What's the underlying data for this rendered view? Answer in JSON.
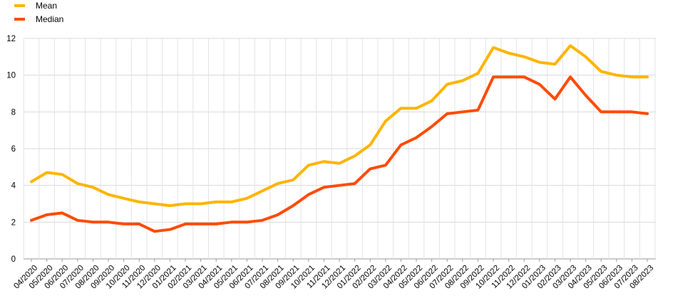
{
  "chart_data": {
    "type": "line",
    "title": "",
    "xlabel": "",
    "ylabel": "",
    "ylim": [
      0,
      12
    ],
    "yticks": [
      0,
      2,
      4,
      6,
      8,
      10,
      12
    ],
    "grid": true,
    "legend_position": "top-left",
    "categories": [
      "04/2020",
      "05/2020",
      "06/2020",
      "07/2020",
      "08/2020",
      "09/2020",
      "10/2020",
      "11/2020",
      "12/2020",
      "01/2021",
      "02/2021",
      "03/2021",
      "04/2021",
      "05/2021",
      "06/2021",
      "07/2021",
      "08/2021",
      "09/2021",
      "10/2021",
      "11/2021",
      "12/2021",
      "01/2022",
      "02/2022",
      "03/2022",
      "04/2022",
      "05/2022",
      "06/2022",
      "07/2022",
      "08/2022",
      "09/2022",
      "10/2022",
      "11/2022",
      "12/2022",
      "01/2023",
      "02/2023",
      "03/2023",
      "04/2023",
      "05/2023",
      "06/2023",
      "07/2023",
      "08/2023"
    ],
    "series": [
      {
        "name": "Mean",
        "color": "#ffb400",
        "values": [
          4.2,
          4.7,
          4.6,
          4.1,
          3.9,
          3.5,
          3.3,
          3.1,
          3.0,
          2.9,
          3.0,
          3.0,
          3.1,
          3.1,
          3.3,
          3.7,
          4.1,
          4.3,
          5.1,
          5.3,
          5.2,
          5.6,
          6.2,
          7.5,
          8.2,
          8.2,
          8.6,
          9.5,
          9.7,
          10.1,
          11.5,
          11.2,
          11.0,
          10.7,
          10.6,
          11.6,
          11.0,
          10.2,
          10.0,
          9.9,
          9.9
        ]
      },
      {
        "name": "Median",
        "color": "#ff4b00",
        "values": [
          2.1,
          2.4,
          2.5,
          2.1,
          2.0,
          2.0,
          1.9,
          1.9,
          1.5,
          1.6,
          1.9,
          1.9,
          1.9,
          2.0,
          2.0,
          2.1,
          2.4,
          2.9,
          3.5,
          3.9,
          4.0,
          4.1,
          4.9,
          5.1,
          6.2,
          6.6,
          7.2,
          7.9,
          8.0,
          8.1,
          9.9,
          9.9,
          9.9,
          9.5,
          8.7,
          9.9,
          8.9,
          8.0,
          8.0,
          8.0,
          7.9
        ]
      }
    ]
  }
}
